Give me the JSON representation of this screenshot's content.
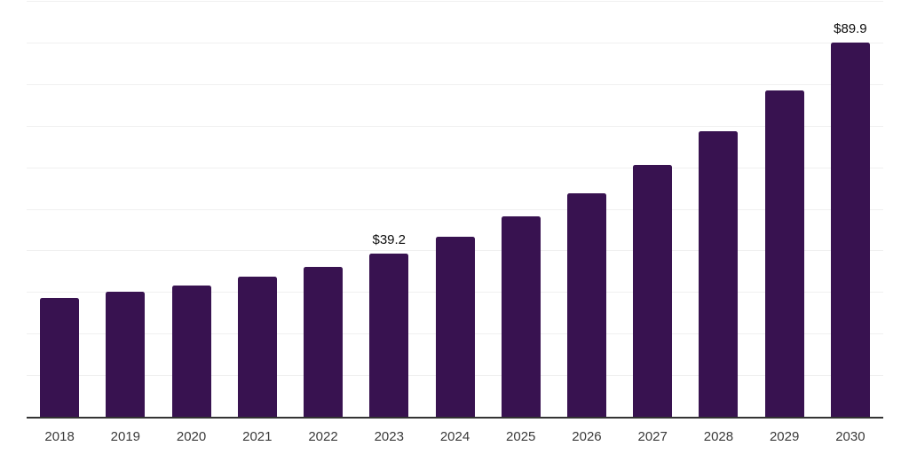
{
  "chart_data": {
    "type": "bar",
    "categories": [
      "2018",
      "2019",
      "2020",
      "2021",
      "2022",
      "2023",
      "2024",
      "2025",
      "2026",
      "2027",
      "2028",
      "2029",
      "2030"
    ],
    "values": [
      28.5,
      30.1,
      31.5,
      33.7,
      36.0,
      39.2,
      43.2,
      48.1,
      53.7,
      60.5,
      68.6,
      78.4,
      89.9
    ],
    "data_labels": {
      "2023": "$39.2",
      "2030": "$89.9"
    },
    "xlabel": "",
    "ylabel": "",
    "ylim": [
      0,
      100
    ],
    "gridline_step": 10,
    "grid": "horizontal",
    "legend": "none",
    "colors": {
      "bar": "#381250",
      "gridline": "#f0f0f0",
      "axis_line": "#333333",
      "tick_label": "#3a3a3a",
      "data_label": "#0d0d0d",
      "background": "#ffffff"
    }
  }
}
